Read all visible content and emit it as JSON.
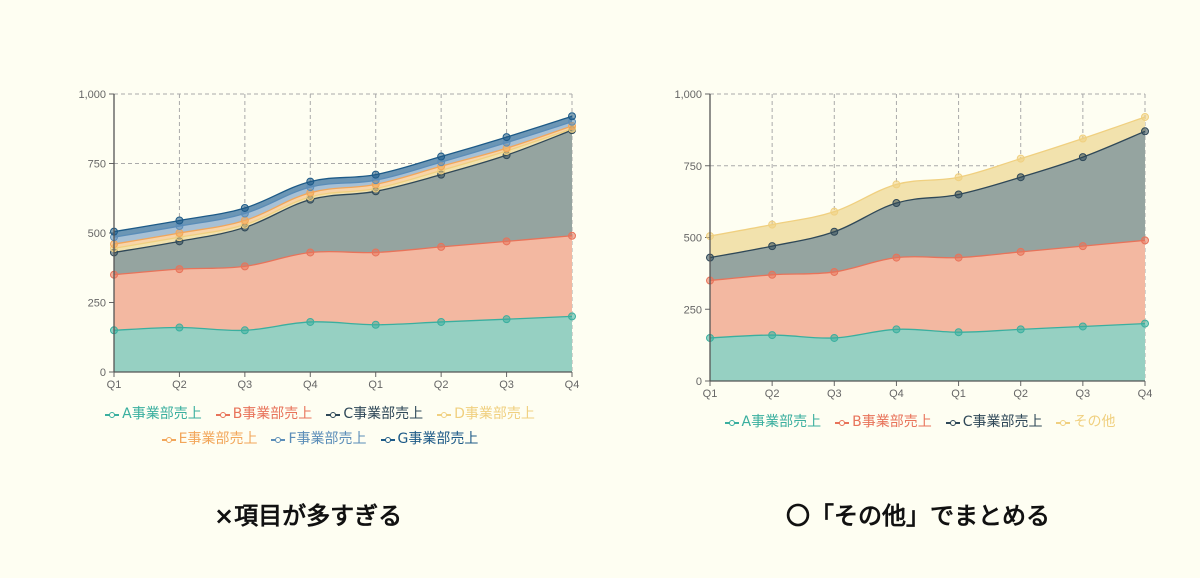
{
  "chart_data": [
    {
      "type": "area",
      "stacked": true,
      "title": "",
      "caption": "×項目が多すぎる",
      "xlabel": "",
      "ylabel": "",
      "categories": [
        "Q1",
        "Q2",
        "Q3",
        "Q4",
        "Q1",
        "Q2",
        "Q3",
        "Q4"
      ],
      "ylim": [
        0,
        1000
      ],
      "yticks": [
        "0",
        "250",
        "500",
        "750",
        "1,000"
      ],
      "grid": true,
      "legend_position": "bottom",
      "series": [
        {
          "name": "A事業部売上",
          "color": "#3aaf9f",
          "fill": "#96d0c2",
          "values": [
            150,
            160,
            150,
            180,
            170,
            180,
            190,
            200
          ]
        },
        {
          "name": "B事業部売上",
          "color": "#e8735a",
          "fill": "#f3b8a1",
          "values": [
            200,
            210,
            230,
            250,
            260,
            270,
            280,
            290
          ]
        },
        {
          "name": "C事業部売上",
          "color": "#2f4858",
          "fill": "#95a4a0",
          "values": [
            80,
            100,
            140,
            190,
            220,
            260,
            310,
            380
          ]
        },
        {
          "name": "D事業部売上",
          "color": "#f0d080",
          "fill": "#f2e2ad",
          "values": [
            15,
            15,
            10,
            10,
            10,
            15,
            15,
            5
          ]
        },
        {
          "name": "E事業部売上",
          "color": "#f2a65a",
          "fill": "#f8d4a8",
          "values": [
            15,
            15,
            15,
            15,
            15,
            15,
            10,
            10
          ]
        },
        {
          "name": "F事業部売上",
          "color": "#5b8db8",
          "fill": "#a7c0d5",
          "values": [
            25,
            25,
            25,
            20,
            15,
            15,
            20,
            15
          ]
        },
        {
          "name": "G事業部売上",
          "color": "#1d5a87",
          "fill": "#6c96b5",
          "values": [
            20,
            20,
            20,
            20,
            20,
            20,
            20,
            20
          ]
        }
      ]
    },
    {
      "type": "area",
      "stacked": true,
      "title": "",
      "caption": "〇「その他」でまとめる",
      "xlabel": "",
      "ylabel": "",
      "categories": [
        "Q1",
        "Q2",
        "Q3",
        "Q4",
        "Q1",
        "Q2",
        "Q3",
        "Q4"
      ],
      "ylim": [
        0,
        1000
      ],
      "yticks": [
        "0",
        "250",
        "500",
        "750",
        "1,000"
      ],
      "grid": true,
      "legend_position": "bottom",
      "series": [
        {
          "name": "A事業部売上",
          "color": "#3aaf9f",
          "fill": "#96d0c2",
          "values": [
            150,
            160,
            150,
            180,
            170,
            180,
            190,
            200
          ]
        },
        {
          "name": "B事業部売上",
          "color": "#e8735a",
          "fill": "#f3b8a1",
          "values": [
            200,
            210,
            230,
            250,
            260,
            270,
            280,
            290
          ]
        },
        {
          "name": "C事業部売上",
          "color": "#2f4858",
          "fill": "#95a4a0",
          "values": [
            80,
            100,
            140,
            190,
            220,
            260,
            310,
            380
          ]
        },
        {
          "name": "その他",
          "color": "#f0d080",
          "fill": "#f2e2ad",
          "values": [
            75,
            75,
            70,
            65,
            60,
            65,
            65,
            50
          ]
        }
      ]
    }
  ],
  "left": {
    "legend_row1": [
      "A事業部売上",
      "B事業部売上",
      "C事業部売上",
      "D事業部売上"
    ],
    "legend_row2": [
      "E事業部売上",
      "F事業部売上",
      "G事業部売上"
    ],
    "caption": "×項目が多すぎる"
  },
  "right": {
    "legend": [
      "A事業部売上",
      "B事業部売上",
      "C事業部売上",
      "その他"
    ],
    "caption": "〇「その他」でまとめる"
  }
}
